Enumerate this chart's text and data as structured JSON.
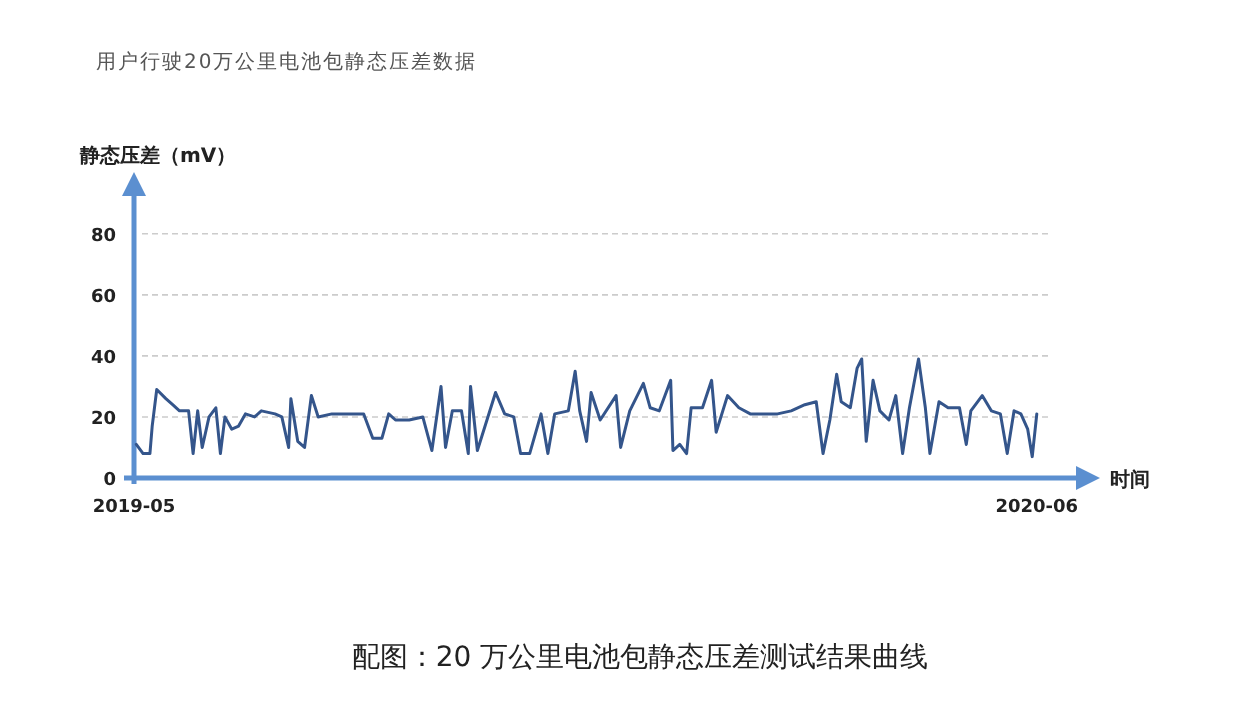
{
  "chart_data": {
    "type": "line",
    "title": "用户行驶20万公里电池包静态压差数据",
    "xlabel": "时间",
    "ylabel": "静态压差（mV）",
    "annotations": [
      "配图：20 万公里电池包静态压差测试结果曲线"
    ],
    "xlim": [
      "2019-05-01",
      "2020-06-20"
    ],
    "ylim": [
      0,
      95
    ],
    "xticks": [
      "2019-05",
      "2020-06"
    ],
    "yticks": [
      0,
      20,
      40,
      60,
      80
    ],
    "grid": "y",
    "color": "#34558b",
    "x": [
      "2019-05-02",
      "2019-05-05",
      "2019-05-08",
      "2019-05-09",
      "2019-05-11",
      "2019-05-15",
      "2019-05-18",
      "2019-05-21",
      "2019-05-25",
      "2019-05-27",
      "2019-05-29",
      "2019-05-31",
      "2019-06-03",
      "2019-06-06",
      "2019-06-08",
      "2019-06-10",
      "2019-06-13",
      "2019-06-16",
      "2019-06-19",
      "2019-06-23",
      "2019-06-26",
      "2019-07-02",
      "2019-07-05",
      "2019-07-08",
      "2019-07-09",
      "2019-07-12",
      "2019-07-15",
      "2019-07-18",
      "2019-07-21",
      "2019-07-27",
      "2019-08-02",
      "2019-08-10",
      "2019-08-14",
      "2019-08-18",
      "2019-08-21",
      "2019-08-24",
      "2019-08-30",
      "2019-09-05",
      "2019-09-09",
      "2019-09-13",
      "2019-09-15",
      "2019-09-18",
      "2019-09-22",
      "2019-09-25",
      "2019-09-26",
      "2019-09-29",
      "2019-10-07",
      "2019-10-11",
      "2019-10-15",
      "2019-10-18",
      "2019-10-22",
      "2019-10-27",
      "2019-10-30",
      "2019-11-02",
      "2019-11-08",
      "2019-11-11",
      "2019-11-13",
      "2019-11-16",
      "2019-11-18",
      "2019-11-22",
      "2019-11-29",
      "2019-12-01",
      "2019-12-05",
      "2019-12-11",
      "2019-12-14",
      "2019-12-18",
      "2019-12-23",
      "2019-12-24",
      "2019-12-27",
      "2019-12-30",
      "2020-01-01",
      "2020-01-06",
      "2020-01-10",
      "2020-01-12",
      "2020-01-17",
      "2020-01-22",
      "2020-01-27",
      "2020-02-02",
      "2020-02-08",
      "2020-02-14",
      "2020-02-20",
      "2020-02-25",
      "2020-02-28",
      "2020-03-02",
      "2020-03-05",
      "2020-03-07",
      "2020-03-11",
      "2020-03-14",
      "2020-03-16",
      "2020-03-18",
      "2020-03-21",
      "2020-03-24",
      "2020-03-28",
      "2020-03-31",
      "2020-04-03",
      "2020-04-06",
      "2020-04-10",
      "2020-04-13",
      "2020-04-15",
      "2020-04-19",
      "2020-04-23",
      "2020-04-28",
      "2020-05-01",
      "2020-05-03",
      "2020-05-08",
      "2020-05-12",
      "2020-05-16",
      "2020-05-19",
      "2020-05-22",
      "2020-05-25",
      "2020-05-28",
      "2020-05-30",
      "2020-06-01"
    ],
    "values": [
      11,
      8,
      8,
      17,
      29,
      26,
      24,
      22,
      22,
      8,
      22,
      10,
      20,
      23,
      8,
      20,
      16,
      17,
      21,
      20,
      22,
      21,
      20,
      10,
      26,
      12,
      10,
      27,
      20,
      21,
      21,
      21,
      13,
      13,
      21,
      19,
      19,
      20,
      9,
      30,
      10,
      22,
      22,
      8,
      30,
      9,
      28,
      21,
      20,
      8,
      8,
      21,
      8,
      21,
      22,
      35,
      22,
      12,
      28,
      19,
      27,
      10,
      22,
      31,
      23,
      22,
      32,
      9,
      11,
      8,
      23,
      23,
      32,
      15,
      27,
      23,
      21,
      21,
      21,
      22,
      24,
      25,
      8,
      19,
      34,
      25,
      23,
      36,
      39,
      12,
      32,
      22,
      19,
      27,
      8,
      23,
      39,
      23,
      8,
      25,
      23,
      23,
      11,
      22,
      27,
      22,
      21,
      8,
      22,
      21,
      16,
      7,
      21
    ]
  }
}
